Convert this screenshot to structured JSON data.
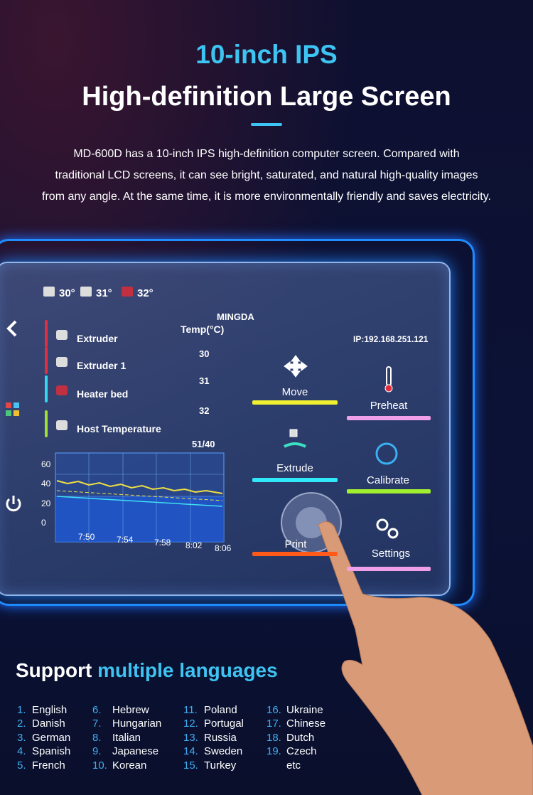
{
  "header": {
    "title_line1": "10-inch IPS",
    "title_line2": "High-definition Large Screen",
    "description": [
      "MD-600D has a 10-inch IPS high-definition computer screen. Compared with",
      "traditional LCD screens, it can see bright, saturated, and natural high-quality images",
      "from any angle. At the same time, it is more environmentally friendly and saves electricity."
    ]
  },
  "screen": {
    "status_temps": [
      "30°",
      "31°",
      "32°"
    ],
    "brand": "MINGDA",
    "temp_header": "Temp(°C)",
    "ip": "IP:192.168.251.121",
    "sensors": [
      {
        "label": "Extruder",
        "value": "30"
      },
      {
        "label": "Extruder 1",
        "value": "31"
      },
      {
        "label": "Heater bed",
        "value": "32"
      },
      {
        "label": "Host Temperature",
        "value": "51/40"
      }
    ],
    "buttons": [
      "Move",
      "Preheat",
      "Extrude",
      "Calibrate",
      "Print",
      "Settings"
    ],
    "graph_y_labels": [
      "60",
      "40",
      "20",
      "0"
    ],
    "graph_x_labels": [
      "7:50",
      "7:54",
      "7:58",
      "8:02",
      "8:06"
    ]
  },
  "languages": {
    "heading": "Support",
    "heading_highlight": "multiple languages",
    "items": [
      {
        "number": "1.",
        "name": "English"
      },
      {
        "number": "2.",
        "name": "Danish"
      },
      {
        "number": "3.",
        "name": "German"
      },
      {
        "number": "4.",
        "name": "Spanish"
      },
      {
        "number": "5.",
        "name": "French"
      },
      {
        "number": "6.",
        "name": "Hebrew"
      },
      {
        "number": "7.",
        "name": "Hungarian"
      },
      {
        "number": "8.",
        "name": "Italian"
      },
      {
        "number": "9.",
        "name": "Japanese"
      },
      {
        "number": "10.",
        "name": "Korean"
      },
      {
        "number": "11.",
        "name": "Poland"
      },
      {
        "number": "12.",
        "name": "Portugal"
      },
      {
        "number": "13.",
        "name": "Russia"
      },
      {
        "number": "14.",
        "name": "Sweden"
      },
      {
        "number": "15.",
        "name": "Turkey"
      },
      {
        "number": "16.",
        "name": "Ukraine"
      },
      {
        "number": "17.",
        "name": "Chinese"
      },
      {
        "number": "18.",
        "name": "Dutch"
      },
      {
        "number": "19.",
        "name": "Czech"
      }
    ],
    "etc": "etc"
  }
}
